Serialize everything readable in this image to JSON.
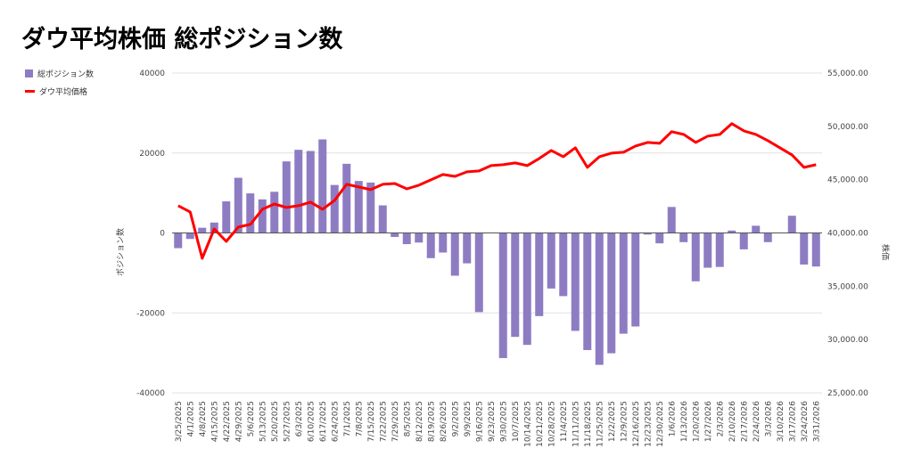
{
  "title": "ダウ平均株価 総ポジション数",
  "legend": [
    "総ポジション数",
    "ダウ平均価格"
  ],
  "colors": {
    "bars": "#8e7cc3",
    "line": "#ff0000",
    "grid": "#e0e0e0"
  },
  "chart_data": {
    "type": "bar+line",
    "title": "ダウ平均株価 総ポジション数",
    "ylabel_left": "ポジション数",
    "ylabel_right": "株価",
    "ylim_left": [
      -40000,
      40000
    ],
    "ylim_right": [
      25000,
      55000
    ],
    "left_ticks": [
      "40000",
      "20000",
      "0",
      "-20000",
      "-40000"
    ],
    "right_ticks": [
      "55,000.00",
      "50,000.00",
      "45,000.00",
      "40,000.00",
      "35,000.00",
      "30,000.00",
      "25,000.00"
    ],
    "categories": [
      "3/25/2025",
      "4/1/2025",
      "4/8/2025",
      "4/15/2025",
      "4/22/2025",
      "4/29/2025",
      "5/6/2025",
      "5/13/2025",
      "5/20/2025",
      "5/27/2025",
      "6/3/2025",
      "6/10/2025",
      "6/17/2025",
      "6/24/2025",
      "7/1/2025",
      "7/8/2025",
      "7/15/2025",
      "7/22/2025",
      "7/29/2025",
      "8/5/2025",
      "8/12/2025",
      "8/19/2025",
      "8/26/2025",
      "9/2/2025",
      "9/9/2025",
      "9/16/2025",
      "9/23/2025",
      "9/30/2025",
      "10/7/2025",
      "10/14/2025",
      "10/21/2025",
      "10/28/2025",
      "11/4/2025",
      "11/11/2025",
      "11/18/2025",
      "11/25/2025",
      "12/2/2025",
      "12/9/2025",
      "12/16/2025",
      "12/23/2025",
      "12/30/2025",
      "1/6/2026",
      "1/13/2026",
      "1/20/2026",
      "1/27/2026",
      "2/3/2026",
      "2/10/2026",
      "2/17/2026",
      "2/24/2026",
      "3/3/2026",
      "3/10/2026",
      "3/17/2026",
      "3/24/2026",
      "3/31/2026"
    ],
    "series": [
      {
        "name": "総ポジション数",
        "type": "bar",
        "axis": "left",
        "values": [
          -3800,
          -1500,
          1300,
          2600,
          7900,
          13800,
          9900,
          8400,
          10300,
          17900,
          20800,
          20500,
          23400,
          12000,
          17300,
          13000,
          12600,
          6900,
          -1000,
          -2800,
          -2400,
          -6300,
          -4900,
          -10700,
          -7600,
          -19800,
          0,
          -31300,
          -26000,
          -28000,
          -20800,
          -13900,
          -15800,
          -24500,
          -29300,
          -33000,
          -30100,
          -25200,
          -23400,
          -400,
          -2600,
          6500,
          -2300,
          -12100,
          -8700,
          -8500,
          600,
          -4100,
          1800,
          -2300,
          0,
          4300,
          -7900,
          -8400
        ]
      },
      {
        "name": "ダウ平均価格",
        "type": "line",
        "axis": "right",
        "values": [
          42560,
          41970,
          37620,
          40380,
          39210,
          40550,
          40800,
          42220,
          42720,
          42390,
          42560,
          42890,
          42220,
          43060,
          44560,
          44310,
          44060,
          44560,
          44640,
          44140,
          44480,
          44980,
          45480,
          45310,
          45730,
          45820,
          46320,
          46400,
          46570,
          46320,
          46990,
          47740,
          47150,
          47990,
          46150,
          47150,
          47490,
          47570,
          48160,
          48490,
          48410,
          49500,
          49240,
          48490,
          49080,
          49240,
          50250,
          49580,
          49240,
          48660,
          47990,
          47320,
          46150,
          46400
        ]
      }
    ]
  }
}
